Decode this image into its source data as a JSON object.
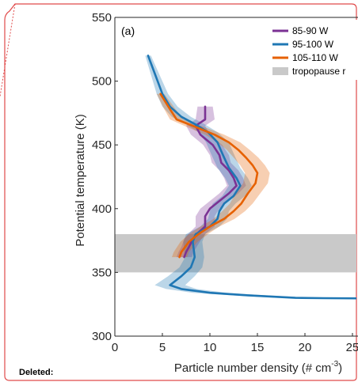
{
  "annotation": {
    "deleted_label": "Deleted:"
  },
  "colors": {
    "series_85_90": "#7b3294",
    "series_95_100": "#1f77b4",
    "series_105_110": "#e66101",
    "tropopause": "#c9c9c9",
    "comment_border": "#e04a4a"
  },
  "chart_data": {
    "type": "line",
    "panel_label": "(a)",
    "xlabel_main": "Particle number density (# cm",
    "xlabel_sup": "-3",
    "xlabel_close": ")",
    "ylabel": "Potential temperature (K)",
    "xlim": [
      0,
      27
    ],
    "ylim": [
      300,
      550
    ],
    "xticks": [
      0,
      5,
      10,
      15,
      20,
      25
    ],
    "yticks": [
      300,
      350,
      400,
      450,
      500,
      550
    ],
    "legend_placement": "top-right",
    "tropopause": {
      "name": "tropopause r",
      "range": [
        350,
        380
      ]
    },
    "series": [
      {
        "name": "85-90 W",
        "color_key": "series_85_90",
        "points": [
          [
            9.5,
            480
          ],
          [
            9.5,
            470
          ],
          [
            8.5,
            465
          ],
          [
            9.0,
            458
          ],
          [
            10.3,
            450
          ],
          [
            11.0,
            442
          ],
          [
            11.2,
            436
          ],
          [
            12.0,
            430
          ],
          [
            12.5,
            424
          ],
          [
            12.8,
            418
          ],
          [
            12.0,
            412
          ],
          [
            11.0,
            406
          ],
          [
            10.0,
            400
          ],
          [
            9.5,
            394
          ],
          [
            9.5,
            386
          ],
          [
            8.6,
            380
          ],
          [
            8.2,
            376
          ],
          [
            7.8,
            370
          ],
          [
            7.5,
            366
          ],
          [
            7.3,
            362
          ]
        ],
        "band": [
          0.8,
          1.0,
          1.0,
          1.0,
          1.0,
          1.0,
          1.0,
          1.0,
          1.0,
          1.0,
          1.0,
          1.0,
          1.0,
          1.0,
          1.0,
          0.9,
          0.9,
          0.8,
          0.8,
          0.8
        ]
      },
      {
        "name": "95-100 W",
        "color_key": "series_95_100",
        "points": [
          [
            3.5,
            520
          ],
          [
            4.0,
            510
          ],
          [
            4.5,
            500
          ],
          [
            5.0,
            490
          ],
          [
            5.8,
            480
          ],
          [
            7.0,
            472
          ],
          [
            8.5,
            466
          ],
          [
            9.8,
            460
          ],
          [
            10.8,
            452
          ],
          [
            11.2,
            445
          ],
          [
            11.5,
            440
          ],
          [
            12.0,
            432
          ],
          [
            12.8,
            424
          ],
          [
            13.2,
            418
          ],
          [
            12.5,
            410
          ],
          [
            11.5,
            404
          ],
          [
            11.0,
            398
          ],
          [
            10.8,
            392
          ],
          [
            10.0,
            386
          ],
          [
            8.5,
            380
          ],
          [
            8.2,
            374
          ],
          [
            8.3,
            368
          ],
          [
            8.4,
            362
          ],
          [
            8.0,
            354
          ],
          [
            7.0,
            347
          ],
          [
            5.8,
            340
          ],
          [
            7.0,
            337
          ],
          [
            10.0,
            334
          ],
          [
            14.0,
            332
          ],
          [
            19.0,
            330
          ],
          [
            22.0,
            329.8
          ],
          [
            26.0,
            329.6
          ],
          [
            27.0,
            329.5
          ]
        ],
        "band": [
          0.3,
          0.4,
          0.5,
          0.6,
          0.8,
          1.0,
          1.0,
          1.0,
          1.2,
          1.2,
          1.2,
          1.2,
          1.2,
          1.2,
          1.2,
          1.2,
          1.0,
          1.0,
          1.0,
          1.0,
          1.0,
          1.0,
          1.0,
          1.2,
          1.4,
          1.6,
          1.6,
          1.8,
          1.8,
          1.8,
          1.8,
          1.8,
          1.8
        ]
      },
      {
        "name": "105-110 W",
        "color_key": "series_105_110",
        "points": [
          [
            4.8,
            490
          ],
          [
            5.8,
            478
          ],
          [
            6.5,
            470
          ],
          [
            8.5,
            464
          ],
          [
            10.5,
            458
          ],
          [
            12.0,
            452
          ],
          [
            13.0,
            446
          ],
          [
            13.8,
            440
          ],
          [
            14.5,
            434
          ],
          [
            15.0,
            428
          ],
          [
            14.8,
            420
          ],
          [
            14.0,
            412
          ],
          [
            13.3,
            404
          ],
          [
            12.5,
            398
          ],
          [
            11.5,
            392
          ],
          [
            10.0,
            386
          ],
          [
            8.8,
            380
          ],
          [
            7.8,
            374
          ],
          [
            7.0,
            366
          ],
          [
            6.8,
            362
          ]
        ],
        "band": [
          0.4,
          0.6,
          0.7,
          0.9,
          1.0,
          1.2,
          1.2,
          1.3,
          1.3,
          1.3,
          1.3,
          1.3,
          1.2,
          1.2,
          1.1,
          1.0,
          1.0,
          0.9,
          0.8,
          0.8
        ]
      }
    ]
  }
}
